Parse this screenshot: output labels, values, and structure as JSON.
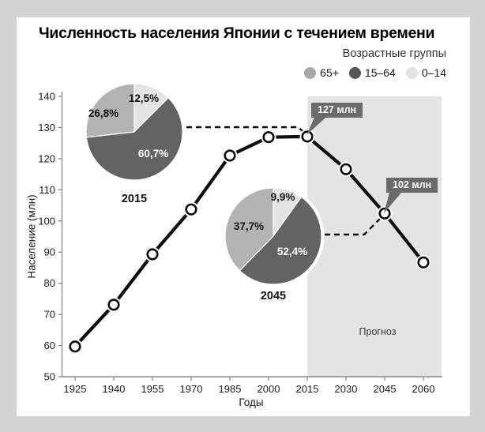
{
  "title": "Численность населения Японии с течением времени",
  "legend": {
    "title": "Возрастные группы",
    "items": [
      {
        "label": "65+",
        "color": "#a8a8a8"
      },
      {
        "label": "15–64",
        "color": "#555555"
      },
      {
        "label": "0–14",
        "color": "#e2e2e2"
      }
    ]
  },
  "chart_data": {
    "type": "line",
    "title": "Численность населения Японии с течением времени",
    "xlabel": "Годы",
    "ylabel": "Население (млн)",
    "x": [
      1925,
      1940,
      1955,
      1970,
      1985,
      2000,
      2015,
      2030,
      2045,
      2060
    ],
    "values": [
      59.7,
      73.1,
      89.3,
      103.7,
      121.0,
      126.9,
      127.1,
      116.6,
      102.4,
      86.7
    ],
    "ylim": [
      50,
      140
    ],
    "y_ticks": [
      50,
      60,
      70,
      80,
      90,
      100,
      110,
      120,
      130,
      140
    ],
    "grid": false,
    "legend_position": "top-right",
    "forecast": {
      "label": "Прогноз",
      "from_year": 2015
    },
    "annotations": [
      {
        "year": 2015,
        "value": 127.1,
        "label": "127 млн"
      },
      {
        "year": 2045,
        "value": 102.4,
        "label": "102 млн"
      }
    ],
    "pies": [
      {
        "label": "2015",
        "slices": [
          {
            "group": "0–14",
            "pct": 12.5,
            "text": "12,5%",
            "color": "#e4e4e4"
          },
          {
            "group": "15–64",
            "pct": 60.7,
            "text": "60,7%",
            "color": "#636363"
          },
          {
            "group": "65+",
            "pct": 26.8,
            "text": "26,8%",
            "color": "#b3b3b3"
          }
        ]
      },
      {
        "label": "2045",
        "slices": [
          {
            "group": "0–14",
            "pct": 9.9,
            "text": "9,9%",
            "color": "#e4e4e4"
          },
          {
            "group": "15–64",
            "pct": 52.4,
            "text": "52,4%",
            "color": "#636363"
          },
          {
            "group": "65+",
            "pct": 37.7,
            "text": "37,7%",
            "color": "#b3b3b3"
          }
        ]
      }
    ],
    "colors": {
      "line": "#0d0d0d",
      "forecast_bg": "#e4e4e4",
      "callout_bg": "#6a6a6a",
      "axis": "#8c8c8c",
      "tick_text": "#1c1c1c"
    }
  }
}
